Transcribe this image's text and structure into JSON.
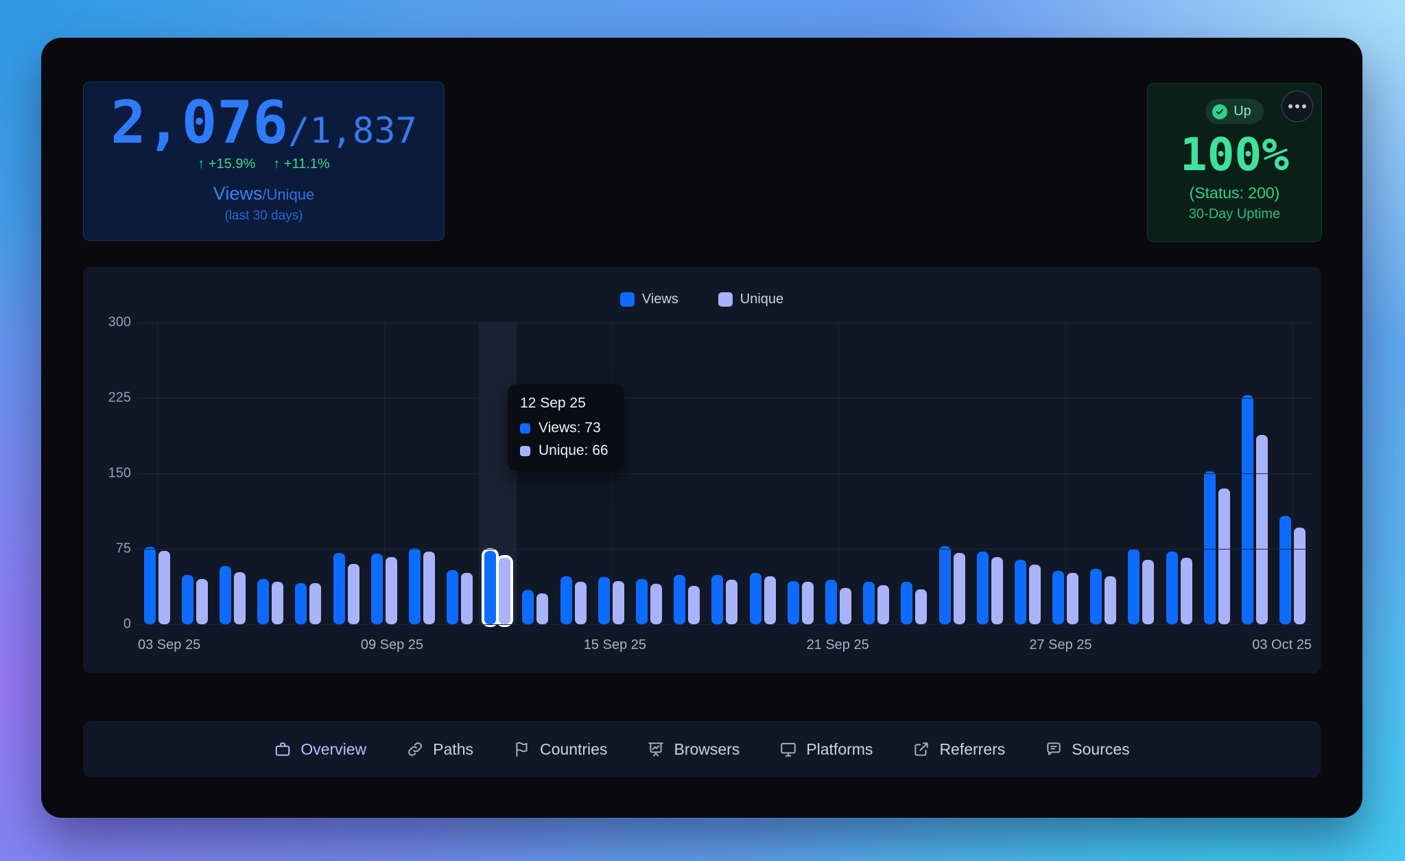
{
  "stats_card": {
    "primary_value": "2,076",
    "secondary_value": "/1,837",
    "primary_delta": "↑ +15.9%",
    "secondary_delta": "↑ +11.1%",
    "label_primary": "Views",
    "label_secondary": "/Unique",
    "sublabel": "(last 30 days)"
  },
  "uptime_card": {
    "badge_label": "Up",
    "value": "100%",
    "status_line": "(Status: 200)",
    "label": "30-Day Uptime"
  },
  "chart_data": {
    "type": "bar",
    "title": "",
    "xlabel": "",
    "ylabel": "",
    "ylim": [
      0,
      300
    ],
    "y_ticks": [
      300,
      225,
      150,
      75,
      0
    ],
    "x_axis_labels": [
      "03 Sep 25",
      "09 Sep 25",
      "15 Sep 25",
      "21 Sep 25",
      "27 Sep 25",
      "03 Oct 25"
    ],
    "grid": true,
    "legend_position": "top-center",
    "categories": [
      "03 Sep 25",
      "04 Sep 25",
      "05 Sep 25",
      "06 Sep 25",
      "07 Sep 25",
      "08 Sep 25",
      "09 Sep 25",
      "10 Sep 25",
      "11 Sep 25",
      "12 Sep 25",
      "13 Sep 25",
      "14 Sep 25",
      "15 Sep 25",
      "16 Sep 25",
      "17 Sep 25",
      "18 Sep 25",
      "19 Sep 25",
      "20 Sep 25",
      "21 Sep 25",
      "22 Sep 25",
      "23 Sep 25",
      "24 Sep 25",
      "25 Sep 25",
      "26 Sep 25",
      "27 Sep 25",
      "28 Sep 25",
      "29 Sep 25",
      "30 Sep 25",
      "01 Oct 25",
      "02 Oct 25",
      "03 Oct 25"
    ],
    "series": [
      {
        "name": "Views",
        "color": "#0d6bff",
        "values": [
          77,
          49,
          58,
          45,
          41,
          71,
          70,
          76,
          54,
          73,
          34,
          48,
          47,
          45,
          49,
          49,
          51,
          43,
          44,
          42,
          42,
          78,
          72,
          64,
          53,
          55,
          75,
          72,
          152,
          228,
          108
        ]
      },
      {
        "name": "Unique",
        "color": "#a9b3f9",
        "values": [
          73,
          45,
          52,
          42,
          41,
          60,
          67,
          72,
          51,
          66,
          31,
          42,
          43,
          40,
          38,
          44,
          48,
          42,
          36,
          39,
          35,
          71,
          67,
          59,
          51,
          48,
          64,
          66,
          135,
          188,
          96
        ]
      }
    ],
    "highlight_index": 9,
    "tooltip": {
      "title": "12 Sep 25",
      "rows": [
        {
          "label": "Views",
          "value": "73",
          "color": "#0d6bff"
        },
        {
          "label": "Unique",
          "value": "66",
          "color": "#a9b3f9"
        }
      ]
    }
  },
  "tabs": [
    {
      "label": "Overview",
      "icon": "briefcase-icon",
      "active": true
    },
    {
      "label": "Paths",
      "icon": "link-icon",
      "active": false
    },
    {
      "label": "Countries",
      "icon": "flag-icon",
      "active": false
    },
    {
      "label": "Browsers",
      "icon": "presentation-chart-icon",
      "active": false
    },
    {
      "label": "Platforms",
      "icon": "monitor-icon",
      "active": false
    },
    {
      "label": "Referrers",
      "icon": "external-link-icon",
      "active": false
    },
    {
      "label": "Sources",
      "icon": "message-icon",
      "active": false
    }
  ],
  "colors": {
    "views_bar": "#0d6bff",
    "unique_bar": "#a9b3f9",
    "accent_blue": "#2f7bff",
    "accent_green": "#3ee29c",
    "panel_bg": "#101828",
    "card_blue_bg": "#0a1b3c",
    "card_green_bg": "#0b1f19"
  }
}
